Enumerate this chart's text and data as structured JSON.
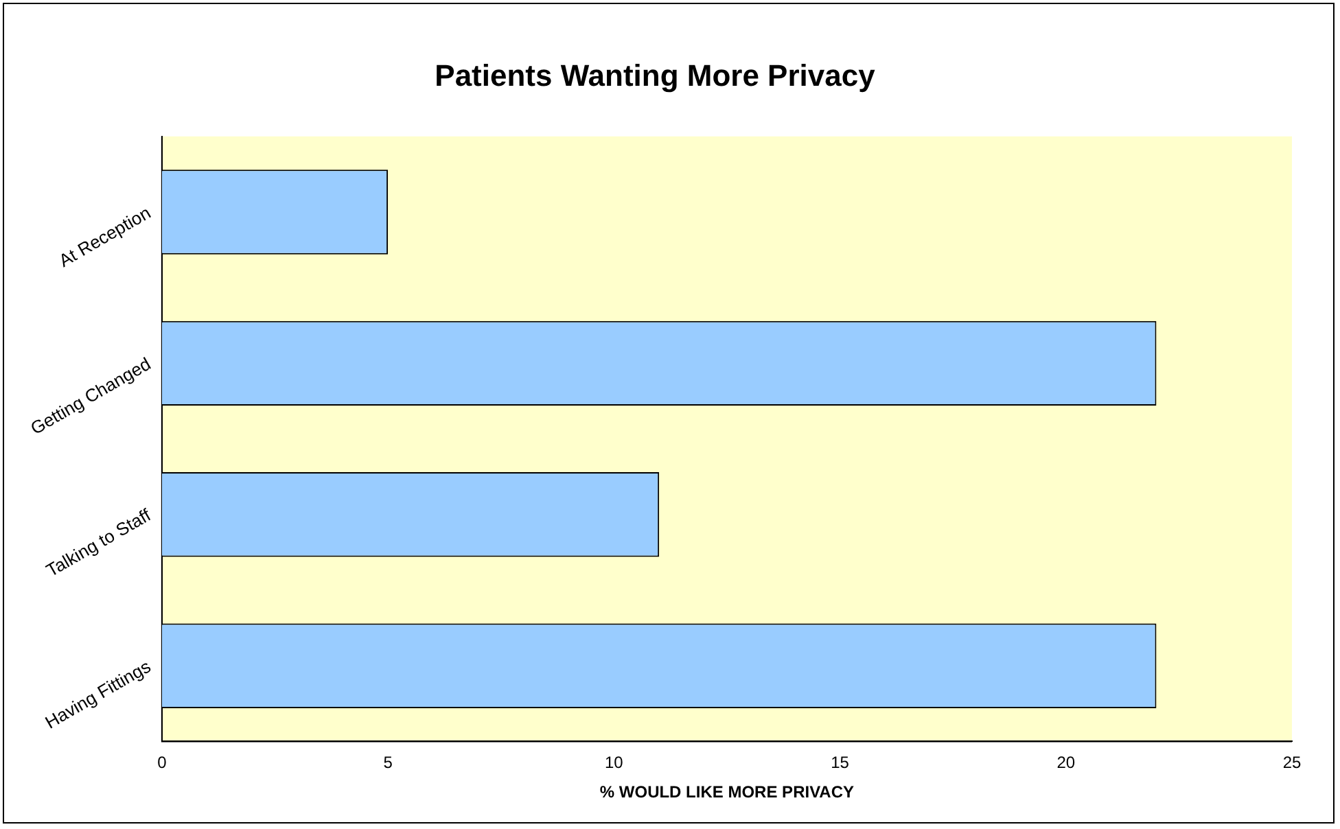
{
  "chart_data": {
    "type": "bar",
    "orientation": "horizontal",
    "title": "Patients Wanting More Privacy",
    "xlabel": "% WOULD LIKE MORE PRIVACY",
    "categories": [
      "At Reception",
      "Getting Changed",
      "Talking to Staff",
      "Having Fittings"
    ],
    "values": [
      5,
      22,
      11,
      22
    ],
    "color": "#99ccff",
    "xlim": [
      0,
      25
    ],
    "xticks": [
      0,
      5,
      10,
      15,
      20,
      25
    ],
    "grid": false,
    "legend": false
  }
}
